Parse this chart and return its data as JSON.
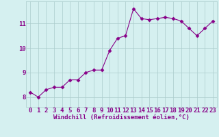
{
  "x": [
    0,
    1,
    2,
    3,
    4,
    5,
    6,
    7,
    8,
    9,
    10,
    11,
    12,
    13,
    14,
    15,
    16,
    17,
    18,
    19,
    20,
    21,
    22,
    23
  ],
  "y": [
    8.2,
    8.0,
    8.3,
    8.4,
    8.4,
    8.7,
    8.7,
    9.0,
    9.1,
    9.1,
    9.9,
    10.4,
    10.5,
    11.6,
    11.2,
    11.15,
    11.2,
    11.25,
    11.2,
    11.1,
    10.8,
    10.5,
    10.8,
    11.1
  ],
  "line_color": "#880088",
  "marker": "D",
  "marker_size": 2.5,
  "bg_color": "#d5f0f0",
  "grid_color": "#aacccc",
  "xlabel": "Windchill (Refroidissement éolien,°C)",
  "xlabel_color": "#880088",
  "xlabel_fontsize": 6.5,
  "tick_color": "#880088",
  "tick_fontsize": 6.5,
  "yticks": [
    8,
    9,
    10,
    11
  ],
  "xticks": [
    0,
    1,
    2,
    3,
    4,
    5,
    6,
    7,
    8,
    9,
    10,
    11,
    12,
    13,
    14,
    15,
    16,
    17,
    18,
    19,
    20,
    21,
    22,
    23
  ],
  "ylim": [
    7.6,
    11.9
  ],
  "xlim": [
    -0.5,
    23.5
  ]
}
